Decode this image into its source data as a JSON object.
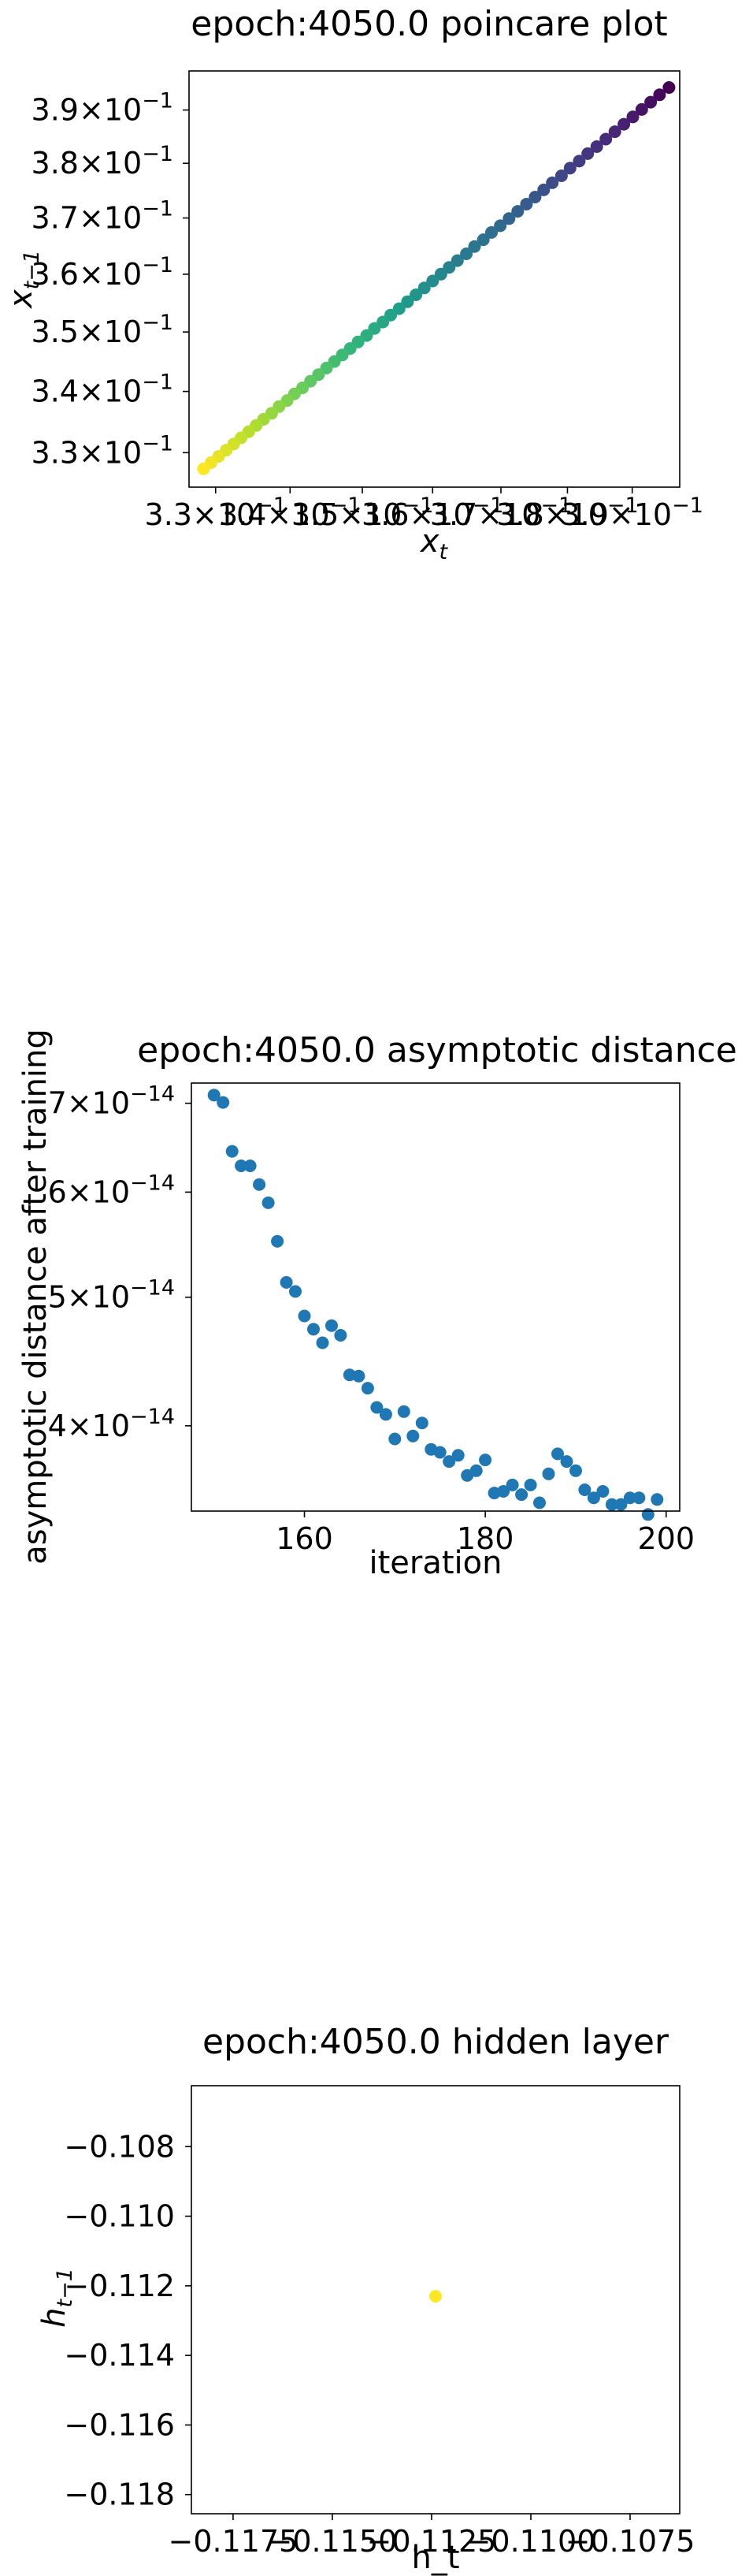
{
  "chart_data": [
    {
      "type": "scatter",
      "title": "epoch:4050.0 poincare plot",
      "xlabel_base": "x",
      "xlabel_sub": "t",
      "ylabel_base": "x",
      "ylabel_sub": "t−1",
      "xscale": "log",
      "yscale": "log",
      "xlim": [
        0.3265,
        0.3975
      ],
      "ylim": [
        0.3245,
        0.3975
      ],
      "colormap": "viridis-reversed",
      "x_ticks": [
        {
          "value": 0.33,
          "mant": "3.3×10",
          "exp": "−1"
        },
        {
          "value": 0.34,
          "mant": "3.4×10",
          "exp": "−1"
        },
        {
          "value": 0.35,
          "mant": "3.5×10",
          "exp": "−1"
        },
        {
          "value": 0.36,
          "mant": "3.6×10",
          "exp": "−1"
        },
        {
          "value": 0.37,
          "mant": "3.7×10",
          "exp": "−1"
        },
        {
          "value": 0.38,
          "mant": "3.8×10",
          "exp": "−1"
        },
        {
          "value": 0.39,
          "mant": "3.9×10",
          "exp": "−1"
        }
      ],
      "y_ticks": [
        {
          "value": 0.33,
          "mant": "3.3×10",
          "exp": "−1"
        },
        {
          "value": 0.34,
          "mant": "3.4×10",
          "exp": "−1"
        },
        {
          "value": 0.35,
          "mant": "3.5×10",
          "exp": "−1"
        },
        {
          "value": 0.36,
          "mant": "3.6×10",
          "exp": "−1"
        },
        {
          "value": 0.37,
          "mant": "3.7×10",
          "exp": "−1"
        },
        {
          "value": 0.38,
          "mant": "3.8×10",
          "exp": "−1"
        },
        {
          "value": 0.39,
          "mant": "3.9×10",
          "exp": "−1"
        }
      ],
      "x": [
        0.3958,
        0.3943,
        0.3929,
        0.3915,
        0.3901,
        0.3887,
        0.3873,
        0.3859,
        0.3845,
        0.3831,
        0.3818,
        0.3804,
        0.3791,
        0.3777,
        0.3764,
        0.3751,
        0.3738,
        0.3725,
        0.3712,
        0.3699,
        0.3686,
        0.3674,
        0.3661,
        0.3649,
        0.3636,
        0.3624,
        0.3612,
        0.36,
        0.3588,
        0.3576,
        0.3564,
        0.3552,
        0.354,
        0.3529,
        0.3517,
        0.3506,
        0.3494,
        0.3483,
        0.3472,
        0.3461,
        0.345,
        0.3439,
        0.3428,
        0.3417,
        0.3406,
        0.3396,
        0.3385,
        0.3375,
        0.3364,
        0.3354,
        0.3344,
        0.3334,
        0.3324,
        0.3314,
        0.3304,
        0.3294,
        0.3284
      ],
      "y": [
        0.3943,
        0.3929,
        0.3915,
        0.3901,
        0.3887,
        0.3873,
        0.3859,
        0.3845,
        0.3831,
        0.3818,
        0.3804,
        0.3791,
        0.3777,
        0.3764,
        0.3751,
        0.3738,
        0.3725,
        0.3712,
        0.3699,
        0.3686,
        0.3674,
        0.3661,
        0.3649,
        0.3636,
        0.3624,
        0.3612,
        0.36,
        0.3588,
        0.3576,
        0.3564,
        0.3552,
        0.354,
        0.3529,
        0.3517,
        0.3506,
        0.3494,
        0.3483,
        0.3472,
        0.3461,
        0.345,
        0.3439,
        0.3428,
        0.3417,
        0.3406,
        0.3396,
        0.3385,
        0.3375,
        0.3364,
        0.3354,
        0.3344,
        0.3334,
        0.3324,
        0.3314,
        0.3304,
        0.3294,
        0.3284,
        0.3274
      ],
      "grid": false
    },
    {
      "type": "scatter",
      "title": "epoch:4050.0 asymptotic distance",
      "xlabel": "iteration",
      "ylabel": "asymptotic distance after training",
      "yscale": "log",
      "xlim": [
        147.5,
        201.5
      ],
      "ylim": [
        3.45e-14,
        7.25e-14
      ],
      "color": "#1f77b4",
      "x_ticks": [
        {
          "value": 160,
          "label": "160"
        },
        {
          "value": 180,
          "label": "180"
        },
        {
          "value": 200,
          "label": "200"
        }
      ],
      "y_ticks": [
        {
          "value": 4e-14,
          "mant": "4×10",
          "exp": "−14"
        },
        {
          "value": 5e-14,
          "mant": "5×10",
          "exp": "−14"
        },
        {
          "value": 6e-14,
          "mant": "6×10",
          "exp": "−14"
        },
        {
          "value": 7e-14,
          "mant": "7×10",
          "exp": "−14"
        }
      ],
      "x": [
        150,
        151,
        152,
        153,
        154,
        155,
        156,
        157,
        158,
        159,
        160,
        161,
        162,
        163,
        164,
        165,
        166,
        167,
        168,
        169,
        170,
        171,
        172,
        173,
        174,
        175,
        176,
        177,
        178,
        179,
        180,
        181,
        182,
        183,
        184,
        185,
        186,
        187,
        188,
        189,
        190,
        191,
        192,
        193,
        194,
        195,
        196,
        197,
        198,
        199
      ],
      "y": [
        7.1e-14,
        7.01e-14,
        6.44e-14,
        6.28e-14,
        6.28e-14,
        6.08e-14,
        5.89e-14,
        5.51e-14,
        5.13e-14,
        5.05e-14,
        4.84e-14,
        4.73e-14,
        4.62e-14,
        4.76e-14,
        4.68e-14,
        4.37e-14,
        4.36e-14,
        4.27e-14,
        4.13e-14,
        4.08e-14,
        3.91e-14,
        4.1e-14,
        3.93e-14,
        4.02e-14,
        3.84e-14,
        3.82e-14,
        3.76e-14,
        3.8e-14,
        3.67e-14,
        3.7e-14,
        3.77e-14,
        3.56e-14,
        3.57e-14,
        3.61e-14,
        3.55e-14,
        3.61e-14,
        3.5e-14,
        3.68e-14,
        3.81e-14,
        3.76e-14,
        3.7e-14,
        3.58e-14,
        3.53e-14,
        3.57e-14,
        3.49e-14,
        3.49e-14,
        3.53e-14,
        3.53e-14,
        3.43e-14,
        3.52e-14
      ],
      "grid": false
    },
    {
      "type": "scatter",
      "title": "epoch:4050.0 hidden layer",
      "xlabel": "h_t",
      "ylabel_base": "h",
      "ylabel_sub": "t−1",
      "xlim": [
        -0.11855,
        -0.10625
      ],
      "ylim": [
        -0.11855,
        -0.10625
      ],
      "color": "#fde725",
      "x_ticks": [
        {
          "value": -0.1175,
          "label": "−0.1175"
        },
        {
          "value": -0.115,
          "label": "−0.1150"
        },
        {
          "value": -0.1125,
          "label": "−0.1125"
        },
        {
          "value": -0.11,
          "label": "−0.1100"
        },
        {
          "value": -0.1075,
          "label": "−0.1075"
        }
      ],
      "y_ticks": [
        {
          "value": -0.108,
          "label": "−0.108"
        },
        {
          "value": -0.11,
          "label": "−0.110"
        },
        {
          "value": -0.112,
          "label": "−0.112"
        },
        {
          "value": -0.114,
          "label": "−0.114"
        },
        {
          "value": -0.116,
          "label": "−0.116"
        },
        {
          "value": -0.118,
          "label": "−0.118"
        }
      ],
      "x": [
        -0.1124
      ],
      "y": [
        -0.1123
      ],
      "grid": false
    }
  ]
}
